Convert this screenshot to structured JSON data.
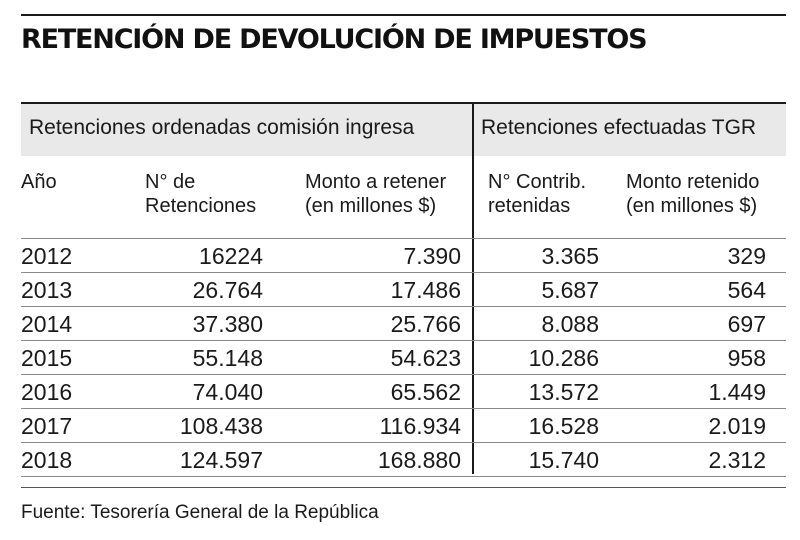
{
  "title": "RETENCIÓN DE DEVOLUCIÓN DE IMPUESTOS",
  "group_headers": [
    "Retenciones ordenadas comisión ingresa",
    "Retenciones efectuadas TGR"
  ],
  "columns": [
    "Año",
    "N° de\nRetenciones",
    "Monto a retener\n(en millones $)",
    "N° Contrib.\nretenidas",
    "Monto retenido\n(en millones $)"
  ],
  "rows": [
    [
      "2012",
      "16224",
      "7.390",
      "3.365",
      "329"
    ],
    [
      "2013",
      "26.764",
      "17.486",
      "5.687",
      "564"
    ],
    [
      "2014",
      "37.380",
      "25.766",
      "8.088",
      "697"
    ],
    [
      "2015",
      "55.148",
      "54.623",
      "10.286",
      "958"
    ],
    [
      "2016",
      "74.040",
      "65.562",
      "13.572",
      "1.449"
    ],
    [
      "2017",
      "108.438",
      "116.934",
      "16.528",
      "2.019"
    ],
    [
      "2018",
      "124.597",
      "168.880",
      "15.740",
      "2.312"
    ]
  ],
  "source": "Fuente: Tesorería General de la República"
}
